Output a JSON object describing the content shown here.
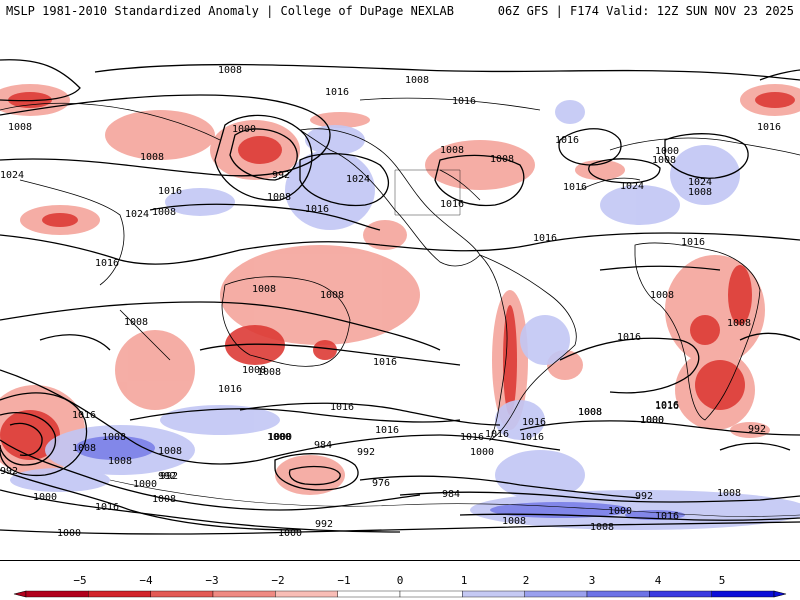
{
  "header": {
    "title_left": "MSLP 1981-2010 Standardized Anomaly | College of DuPage NEXLAB",
    "title_right": "06Z GFS | F174 Valid: 12Z SUN NOV 23 2025"
  },
  "map": {
    "projection": "equirectangular-global",
    "fill_variable": "MSLP standardized anomaly",
    "contour_variable": "MSLP (hPa)",
    "isobar_labels": [
      "1008",
      "1008",
      "1016",
      "1000",
      "992",
      "1008",
      "1008",
      "1024",
      "1008",
      "1024",
      "1016",
      "1024",
      "1016",
      "1008",
      "1008",
      "1016",
      "1008",
      "1016",
      "1016",
      "1016",
      "1016",
      "1024",
      "1008",
      "1008",
      "1016",
      "1016",
      "1016",
      "1008",
      "1008",
      "1000",
      "1016",
      "1000",
      "1008",
      "992",
      "1016",
      "1024",
      "1016",
      "1016",
      "1016",
      "1008",
      "1016",
      "1008",
      "1008",
      "1016",
      "1008",
      "1008",
      "1008",
      "1008",
      "1016",
      "1016",
      "1016",
      "1000",
      "984",
      "992",
      "1000",
      "976",
      "984",
      "1000",
      "1008",
      "1016",
      "992",
      "1008",
      "992",
      "1000",
      "1000",
      "1016",
      "1008",
      "992",
      "1008",
      "1016",
      "992",
      "1000",
      "1000",
      "1008",
      "1016",
      "1008",
      "1000",
      "1000",
      "992",
      "1008"
    ]
  },
  "colorbar": {
    "ticks": [
      "−5",
      "−4",
      "−3",
      "−2",
      "−1",
      "0",
      "1",
      "2",
      "3",
      "4",
      "5"
    ],
    "colors": [
      "#b1001c",
      "#d2242b",
      "#e35a55",
      "#ef8a83",
      "#f8bdb6",
      "#ffffff",
      "#ffffff",
      "#c5c9f3",
      "#9aa0ee",
      "#6d73e6",
      "#3a3be0",
      "#0c0fd8"
    ]
  }
}
